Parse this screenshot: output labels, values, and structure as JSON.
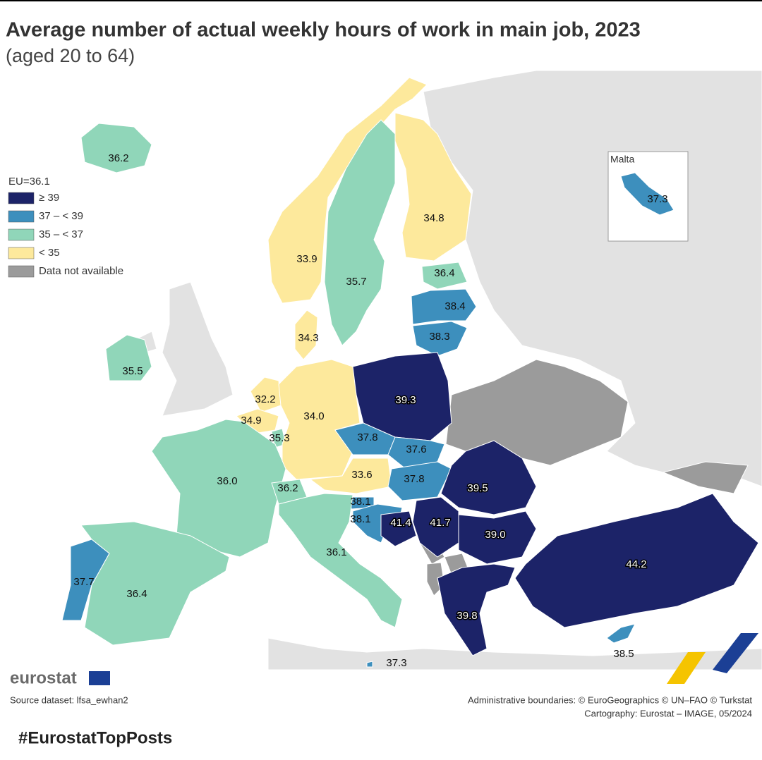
{
  "header": {
    "title": "Average number of actual weekly hours of work in main job, 2023",
    "subtitle": "(aged 20 to 64)"
  },
  "legend": {
    "title": "EU=36.1",
    "items": [
      {
        "label": "≥ 39",
        "color": "#1c2368"
      },
      {
        "label": "37 – < 39",
        "color": "#3d8fbd"
      },
      {
        "label": "35 – < 37",
        "color": "#90d6b9"
      },
      {
        "label": "< 35",
        "color": "#fde99c"
      },
      {
        "label": "Data not available",
        "color": "#9b9b9b"
      }
    ]
  },
  "regions": [
    {
      "label": "36.2",
      "color": "#90d6b9"
    },
    {
      "label": "33.9",
      "color": "#fde99c"
    },
    {
      "label": "35.7",
      "color": "#90d6b9"
    },
    {
      "label": "34.8",
      "color": "#fde99c"
    },
    {
      "label": "36.4",
      "color": "#90d6b9"
    },
    {
      "label": "38.4",
      "color": "#3d8fbd"
    },
    {
      "label": "38.3",
      "color": "#3d8fbd"
    },
    {
      "label": "34.3",
      "color": "#fde99c"
    },
    {
      "label": "35.5",
      "color": "#90d6b9"
    },
    {
      "label": "32.2",
      "color": "#fde99c"
    },
    {
      "label": "34.9",
      "color": "#fde99c"
    },
    {
      "label": "35.3",
      "color": "#90d6b9"
    },
    {
      "label": "34.0",
      "color": "#fde99c"
    },
    {
      "label": "39.3",
      "color": "#1c2368"
    },
    {
      "label": "37.8",
      "color": "#3d8fbd"
    },
    {
      "label": "37.6",
      "color": "#3d8fbd"
    },
    {
      "label": "33.6",
      "color": "#fde99c"
    },
    {
      "label": "37.8",
      "color": "#3d8fbd"
    },
    {
      "label": "39.5",
      "color": "#1c2368"
    },
    {
      "label": "36.0",
      "color": "#90d6b9"
    },
    {
      "label": "36.2",
      "color": "#90d6b9"
    },
    {
      "label": "38.1",
      "color": "#3d8fbd"
    },
    {
      "label": "38.1",
      "color": "#3d8fbd"
    },
    {
      "label": "41.4",
      "color": "#1c2368"
    },
    {
      "label": "41.7",
      "color": "#1c2368"
    },
    {
      "label": "39.0",
      "color": "#1c2368"
    },
    {
      "label": "36.1",
      "color": "#90d6b9"
    },
    {
      "label": "37.7",
      "color": "#3d8fbd"
    },
    {
      "label": "36.4",
      "color": "#90d6b9"
    },
    {
      "label": "44.2",
      "color": "#1c2368"
    },
    {
      "label": "39.8",
      "color": "#1c2368"
    },
    {
      "label": "38.5",
      "color": "#3d8fbd"
    },
    {
      "label": "37.3",
      "color": "#3d8fbd"
    }
  ],
  "inset": {
    "title": "Malta",
    "label": "37.3",
    "color": "#3d8fbd"
  },
  "footer": {
    "logo": "eurostat",
    "source": "Source dataset: lfsa_ewhan2",
    "boundaries": "Administrative boundaries: © EuroGeographics © UN–FAO © Turkstat",
    "cartography": "Cartography: Eurostat – IMAGE, 05/2024",
    "hashtag": "#EurostatTopPosts"
  }
}
